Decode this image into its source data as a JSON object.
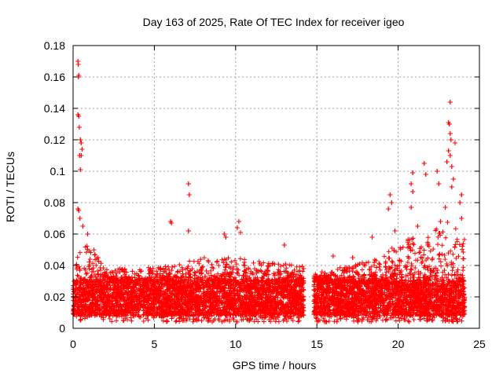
{
  "chart_data": {
    "type": "scatter",
    "title": "Day 163 of 2025, Rate Of TEC Index for receiver igeo",
    "xlabel": "GPS time / hours",
    "ylabel": "ROTI / TECUs",
    "xlim": [
      0,
      25
    ],
    "ylim": [
      0,
      0.18
    ],
    "xticks": [
      0,
      5,
      10,
      15,
      20,
      25
    ],
    "xtick_labels": [
      "0",
      "5",
      "10",
      "15",
      "20",
      "25"
    ],
    "yticks": [
      0,
      0.02,
      0.04,
      0.06,
      0.08,
      0.1,
      0.12,
      0.14,
      0.16,
      0.18
    ],
    "ytick_labels": [
      "0",
      "0.02",
      "0.04",
      "0.06",
      "0.08",
      "0.1",
      "0.12",
      "0.14",
      "0.16",
      "0.18"
    ],
    "grid": true,
    "marker": "+",
    "marker_color": "#ff0000",
    "series": [
      {
        "name": "ROTI",
        "gap_hours": [
          14.2,
          14.8
        ],
        "baseline_range": [
          0.008,
          0.03
        ],
        "envelope": [
          {
            "x": 0.0,
            "upper": 0.05
          },
          {
            "x": 1.0,
            "upper": 0.055
          },
          {
            "x": 2.0,
            "upper": 0.038
          },
          {
            "x": 4.0,
            "upper": 0.038
          },
          {
            "x": 6.0,
            "upper": 0.04
          },
          {
            "x": 8.0,
            "upper": 0.045
          },
          {
            "x": 10.0,
            "upper": 0.045
          },
          {
            "x": 12.0,
            "upper": 0.042
          },
          {
            "x": 14.2,
            "upper": 0.04
          },
          {
            "x": 14.8,
            "upper": 0.035
          },
          {
            "x": 17.0,
            "upper": 0.04
          },
          {
            "x": 19.0,
            "upper": 0.045
          },
          {
            "x": 20.5,
            "upper": 0.06
          },
          {
            "x": 22.0,
            "upper": 0.06
          },
          {
            "x": 23.0,
            "upper": 0.07
          },
          {
            "x": 24.0,
            "upper": 0.06
          }
        ],
        "highlights": [
          {
            "x": 0.3,
            "y": 0.17
          },
          {
            "x": 0.32,
            "y": 0.168
          },
          {
            "x": 0.35,
            "y": 0.161
          },
          {
            "x": 0.33,
            "y": 0.16
          },
          {
            "x": 0.3,
            "y": 0.136
          },
          {
            "x": 0.35,
            "y": 0.135
          },
          {
            "x": 0.38,
            "y": 0.128
          },
          {
            "x": 0.45,
            "y": 0.12
          },
          {
            "x": 0.5,
            "y": 0.118
          },
          {
            "x": 0.55,
            "y": 0.114
          },
          {
            "x": 0.4,
            "y": 0.11
          },
          {
            "x": 0.5,
            "y": 0.11
          },
          {
            "x": 0.45,
            "y": 0.101
          },
          {
            "x": 0.3,
            "y": 0.076
          },
          {
            "x": 0.35,
            "y": 0.075
          },
          {
            "x": 0.42,
            "y": 0.07
          },
          {
            "x": 0.6,
            "y": 0.065
          },
          {
            "x": 0.9,
            "y": 0.06
          },
          {
            "x": 6.0,
            "y": 0.068
          },
          {
            "x": 6.05,
            "y": 0.067
          },
          {
            "x": 7.1,
            "y": 0.092
          },
          {
            "x": 7.15,
            "y": 0.085
          },
          {
            "x": 7.1,
            "y": 0.062
          },
          {
            "x": 10.2,
            "y": 0.068
          },
          {
            "x": 10.1,
            "y": 0.064
          },
          {
            "x": 10.3,
            "y": 0.061
          },
          {
            "x": 9.3,
            "y": 0.06
          },
          {
            "x": 9.4,
            "y": 0.058
          },
          {
            "x": 19.5,
            "y": 0.085
          },
          {
            "x": 19.6,
            "y": 0.08
          },
          {
            "x": 19.4,
            "y": 0.076
          },
          {
            "x": 20.9,
            "y": 0.099
          },
          {
            "x": 20.8,
            "y": 0.092
          },
          {
            "x": 20.9,
            "y": 0.087
          },
          {
            "x": 20.8,
            "y": 0.077
          },
          {
            "x": 21.6,
            "y": 0.105
          },
          {
            "x": 21.7,
            "y": 0.098
          },
          {
            "x": 22.4,
            "y": 0.1
          },
          {
            "x": 22.5,
            "y": 0.092
          },
          {
            "x": 23.2,
            "y": 0.144
          },
          {
            "x": 23.1,
            "y": 0.131
          },
          {
            "x": 23.15,
            "y": 0.13
          },
          {
            "x": 23.2,
            "y": 0.124
          },
          {
            "x": 23.25,
            "y": 0.12
          },
          {
            "x": 23.5,
            "y": 0.118
          },
          {
            "x": 23.1,
            "y": 0.113
          },
          {
            "x": 23.2,
            "y": 0.11
          },
          {
            "x": 23.0,
            "y": 0.106
          },
          {
            "x": 23.3,
            "y": 0.103
          },
          {
            "x": 23.4,
            "y": 0.095
          },
          {
            "x": 23.3,
            "y": 0.09
          },
          {
            "x": 23.9,
            "y": 0.085
          },
          {
            "x": 23.8,
            "y": 0.08
          },
          {
            "x": 22.9,
            "y": 0.077
          },
          {
            "x": 23.9,
            "y": 0.07
          },
          {
            "x": 22.6,
            "y": 0.068
          },
          {
            "x": 21.2,
            "y": 0.065
          },
          {
            "x": 19.8,
            "y": 0.062
          },
          {
            "x": 18.4,
            "y": 0.058
          },
          {
            "x": 13.0,
            "y": 0.053
          },
          {
            "x": 16.0,
            "y": 0.046
          },
          {
            "x": 17.2,
            "y": 0.045
          }
        ]
      }
    ]
  }
}
